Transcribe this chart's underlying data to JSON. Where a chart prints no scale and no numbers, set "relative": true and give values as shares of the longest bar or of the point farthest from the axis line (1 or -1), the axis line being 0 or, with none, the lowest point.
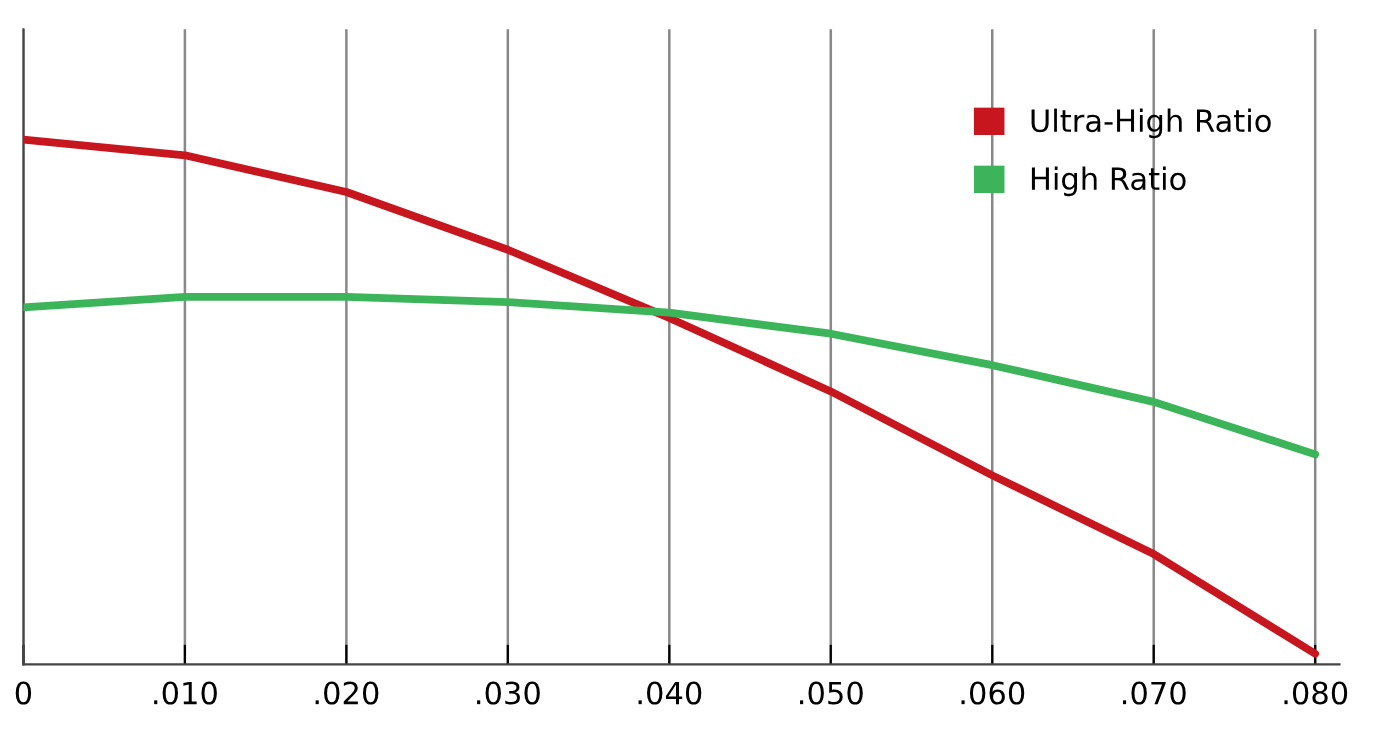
{
  "chart_data": {
    "type": "line",
    "relative": true,
    "x": [
      0,
      0.01,
      0.02,
      0.03,
      0.04,
      0.05,
      0.06,
      0.07,
      0.08
    ],
    "xlim": [
      0,
      0.0815
    ],
    "xticks": [
      0,
      {
        "value": 0.01,
        "label": ".010"
      },
      {
        "value": 0.02,
        "label": ".020"
      },
      {
        "value": 0.03,
        "label": ".030"
      },
      {
        "value": 0.04,
        "label": ".040"
      },
      {
        "value": 0.05,
        "label": ".050"
      },
      {
        "value": 0.06,
        "label": ".060"
      },
      {
        "value": 0.07,
        "label": ".070"
      },
      {
        "value": 0.08,
        "label": ".080"
      }
    ],
    "series": [
      {
        "name": "Ultra-High Ratio",
        "color": "#c8161e",
        "values": [
          1,
          0.97,
          0.9,
          0.79,
          0.66,
          0.52,
          0.36,
          0.21,
          0.02
        ]
      },
      {
        "name": "High Ratio",
        "color": "#3cb45a",
        "values": [
          0.68,
          0.7,
          0.7,
          0.69,
          0.67,
          0.63,
          0.57,
          0.5,
          0.4
        ]
      }
    ],
    "grid": "x",
    "legend": "top right",
    "tick_labels": "x"
  }
}
